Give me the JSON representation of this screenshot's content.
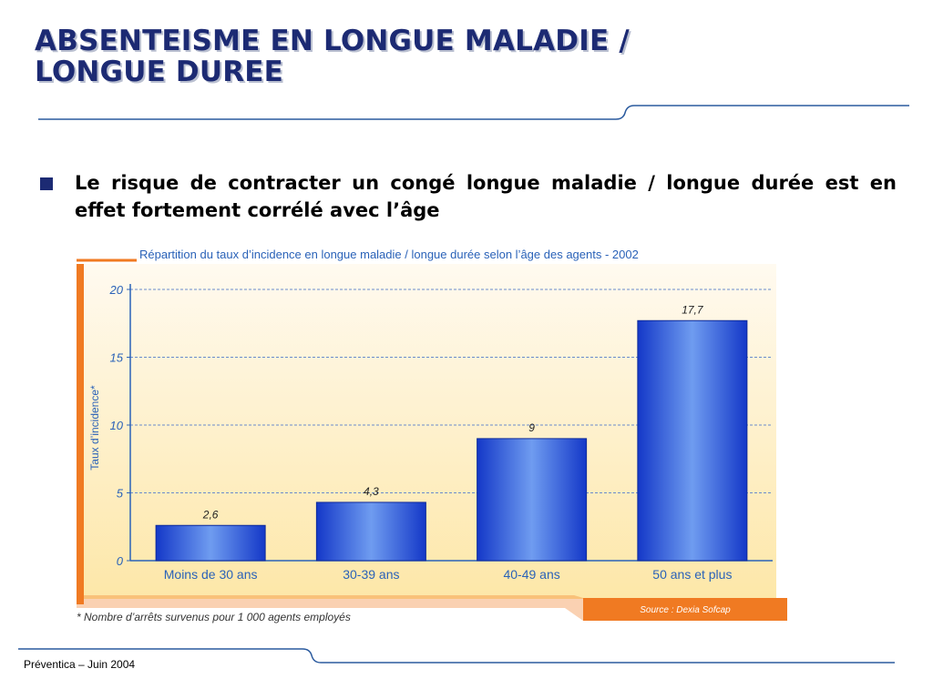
{
  "slide": {
    "title_line1": "ABSENTEISME EN LONGUE MALADIE /",
    "title_line2": "LONGUE DUREE",
    "bullet_text": "Le risque de contracter un congé longue maladie / longue durée est en effet fortement corrélé avec l’âge",
    "footer": "Préventica – Juin 2004"
  },
  "chart_data": {
    "type": "bar",
    "title": "Répartition du taux d’incidence en longue maladie / longue durée selon l’âge des agents - 2002",
    "categories": [
      "Moins de 30 ans",
      "30-39 ans",
      "40-49 ans",
      "50 ans et plus"
    ],
    "values": [
      2.6,
      4.3,
      9,
      17.7
    ],
    "data_labels": [
      "2,6",
      "4,3",
      "9",
      "17,7"
    ],
    "ylabel": "Taux d’incidence*",
    "ylim": [
      0,
      20
    ],
    "yticks": [
      0,
      5,
      10,
      15,
      20
    ],
    "grid": true,
    "footnote": "* Nombre d’arrêts survenus pour 1 000 agents employés",
    "source": "Source : Dexia Sofcap",
    "colors": {
      "bar": "#1a3fd0",
      "bar_highlight": "#6f9cf0",
      "axis_text": "#2a62b8",
      "accent": "#f07a22",
      "background": "#fdf2d2"
    }
  }
}
